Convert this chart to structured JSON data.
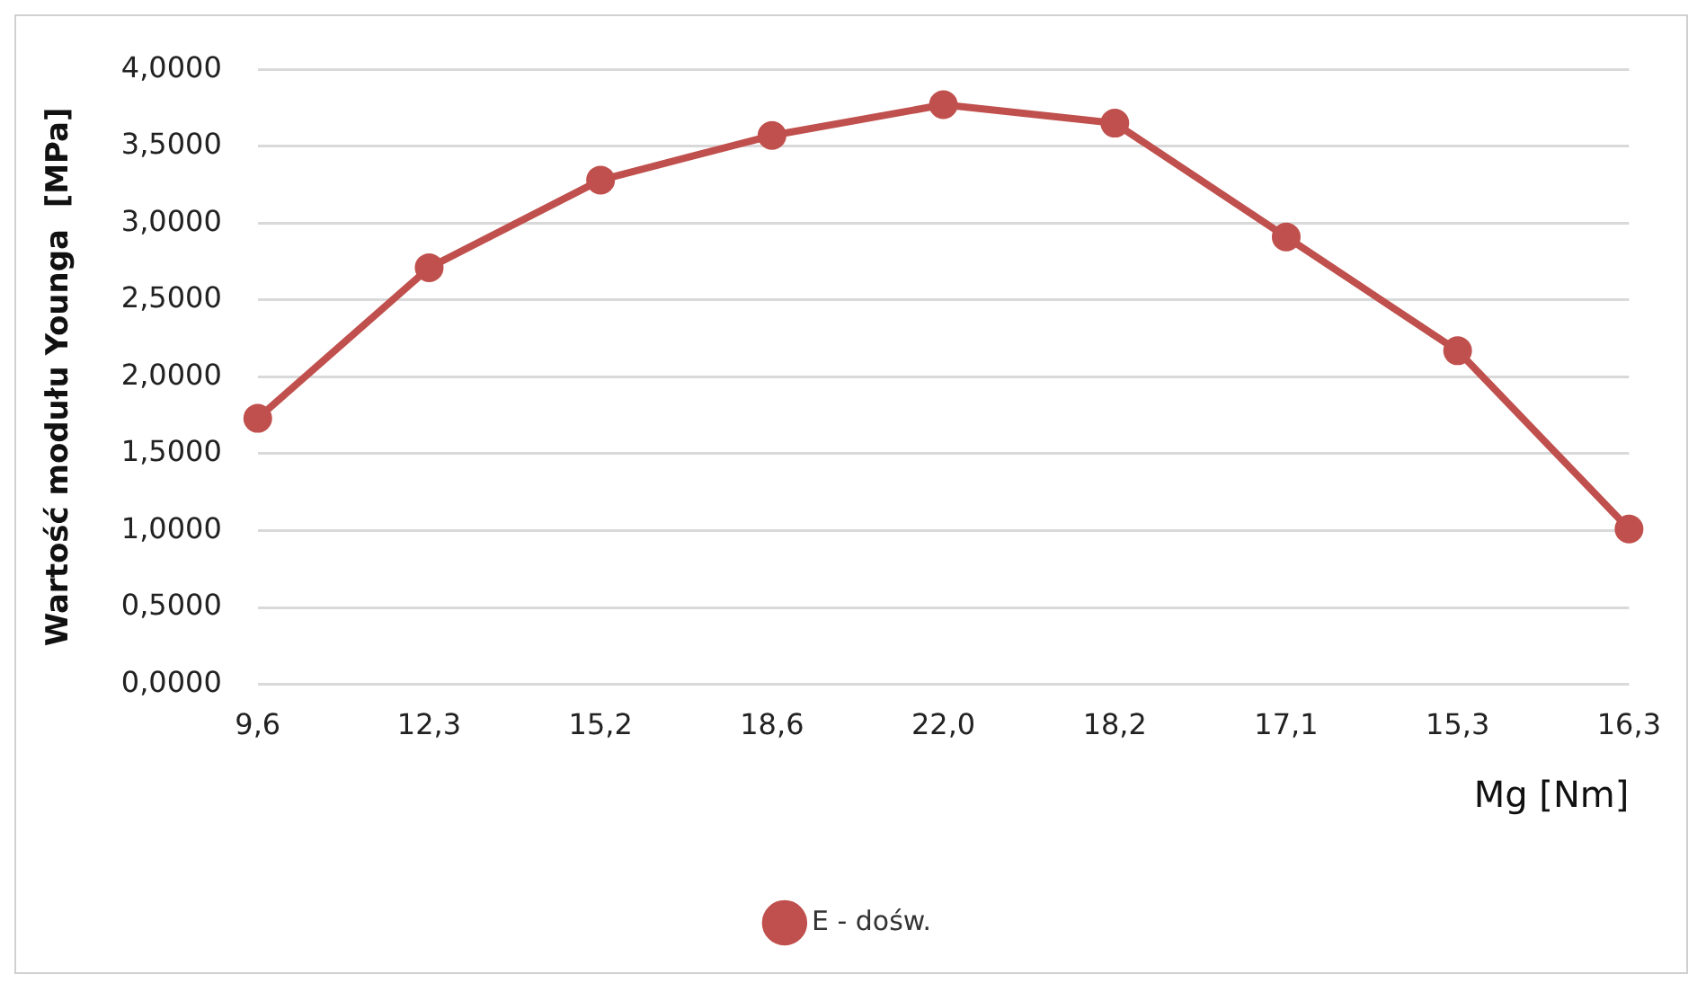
{
  "chart_data": {
    "type": "line",
    "ylabel": "Wartość modułu Younga  [MPa]",
    "xlabel": "Mg [Nm]",
    "categories": [
      "9,6",
      "12,3",
      "15,2",
      "18,6",
      "22,0",
      "18,2",
      "17,1",
      "15,3",
      "16,3"
    ],
    "series": [
      {
        "name": "E - dośw.",
        "color": "#c0504d",
        "values": [
          1.73,
          2.71,
          3.28,
          3.57,
          3.77,
          3.65,
          2.91,
          2.17,
          1.01
        ]
      }
    ],
    "ylim": [
      0,
      4
    ],
    "yticks": [
      {
        "value": 0,
        "label": "0,0000"
      },
      {
        "value": 0.5,
        "label": "0,5000"
      },
      {
        "value": 1,
        "label": "1,0000"
      },
      {
        "value": 1.5,
        "label": "1,5000"
      },
      {
        "value": 2,
        "label": "2,0000"
      },
      {
        "value": 2.5,
        "label": "2,5000"
      },
      {
        "value": 3,
        "label": "3,0000"
      },
      {
        "value": 3.5,
        "label": "3,5000"
      },
      {
        "value": 4,
        "label": "4,0000"
      }
    ],
    "grid": "y",
    "legend": "bottom",
    "marker": "circle",
    "line_style": "solid"
  }
}
